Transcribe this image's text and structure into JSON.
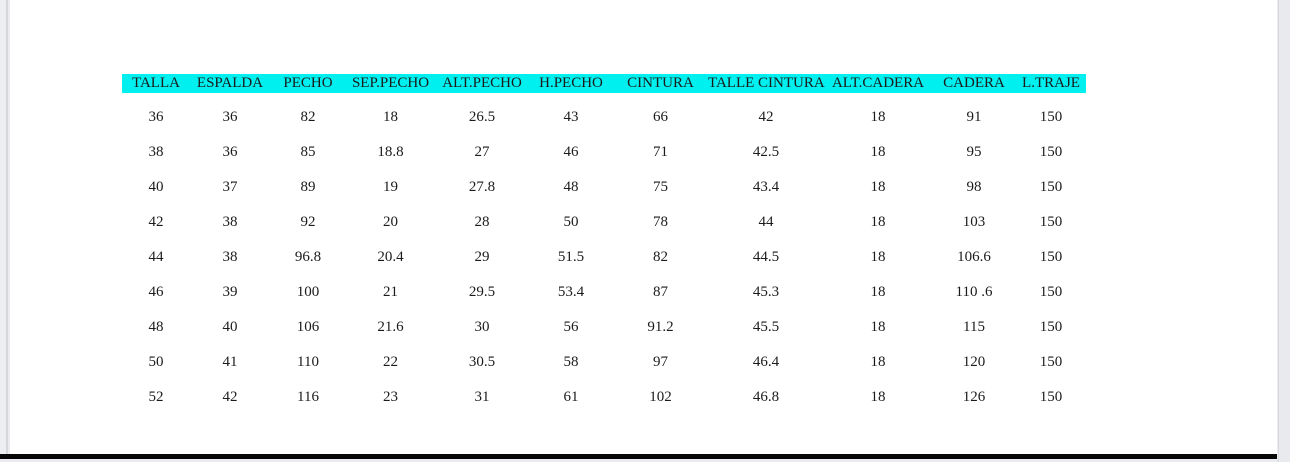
{
  "page": {
    "background_color": "#eaebee",
    "page_color": "#ffffff",
    "highlight_color": "#00efef",
    "text_color": "#1b1b1b",
    "bottom_bar_color": "#070707"
  },
  "table": {
    "columns": [
      "TALLA",
      "ESPALDA",
      "PECHO",
      "SEP.PECHO",
      "ALT.PECHO",
      "H.PECHO",
      "CINTURA",
      "TALLE CINTURA",
      "ALT.CADERA",
      "CADERA",
      "L.TRAJE"
    ],
    "rows": [
      [
        "36",
        "36",
        "82",
        "18",
        "26.5",
        "43",
        "66",
        "42",
        "18",
        "91",
        "150"
      ],
      [
        "38",
        "36",
        "85",
        "18.8",
        "27",
        "46",
        "71",
        "42.5",
        "18",
        "95",
        "150"
      ],
      [
        "40",
        "37",
        "89",
        "19",
        "27.8",
        "48",
        "75",
        "43.4",
        "18",
        "98",
        "150"
      ],
      [
        "42",
        "38",
        "92",
        "20",
        "28",
        "50",
        "78",
        "44",
        "18",
        "103",
        "150"
      ],
      [
        "44",
        "38",
        "96.8",
        "20.4",
        "29",
        "51.5",
        "82",
        "44.5",
        "18",
        "106.6",
        "150"
      ],
      [
        "46",
        "39",
        "100",
        "21",
        "29.5",
        "53.4",
        "87",
        "45.3",
        "18",
        "110 .6",
        "150"
      ],
      [
        "48",
        "40",
        "106",
        "21.6",
        "30",
        "56",
        "91.2",
        "45.5",
        "18",
        "115",
        "150"
      ],
      [
        "50",
        "41",
        "110",
        "22",
        "30.5",
        "58",
        "97",
        "46.4",
        "18",
        "120",
        "150"
      ],
      [
        "52",
        "42",
        "116",
        "23",
        "31",
        "61",
        "102",
        "46.8",
        "18",
        "126",
        "150"
      ]
    ]
  }
}
